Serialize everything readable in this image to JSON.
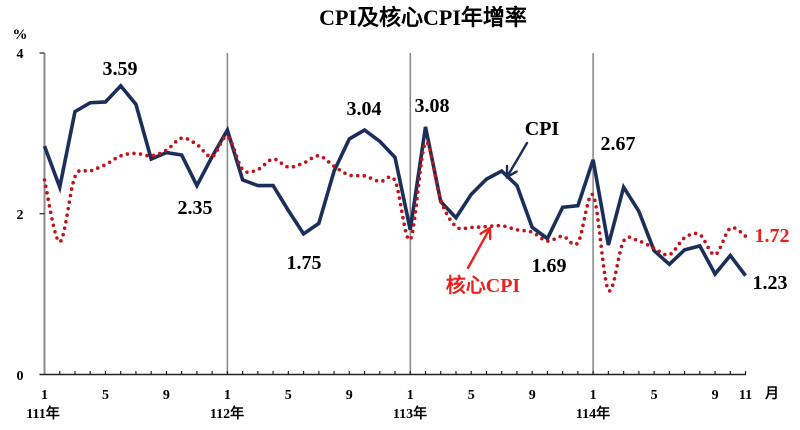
{
  "title": "CPI及核心CPI年增率",
  "chart_data": {
    "type": "line",
    "title": "CPI及核心CPI年增率",
    "ylabel": "%",
    "xlabel": "月",
    "ylim": [
      0,
      4
    ],
    "yticks": [
      "0",
      "2",
      "4"
    ],
    "grid": false,
    "legend": "inline annotations with arrows",
    "x": [
      "111/1",
      "111/2",
      "111/3",
      "111/4",
      "111/5",
      "111/6",
      "111/7",
      "111/8",
      "111/9",
      "111/10",
      "111/11",
      "111/12",
      "112/1",
      "112/2",
      "112/3",
      "112/4",
      "112/5",
      "112/6",
      "112/7",
      "112/8",
      "112/9",
      "112/10",
      "112/11",
      "112/12",
      "113/1",
      "113/2",
      "113/3",
      "113/4",
      "113/5",
      "113/6",
      "113/7",
      "113/8",
      "113/9",
      "113/10",
      "113/11",
      "113/12",
      "114/1",
      "114/2",
      "114/3",
      "114/4",
      "114/5",
      "114/6",
      "114/7",
      "114/8",
      "114/9",
      "114/10",
      "114/11"
    ],
    "month_tick_labels": [
      "1",
      "5",
      "9",
      "1",
      "5",
      "9",
      "1",
      "5",
      "9",
      "1",
      "5",
      "9",
      "11"
    ],
    "year_labels": [
      "111年",
      "112年",
      "113年",
      "114年"
    ],
    "series": [
      {
        "name": "CPI",
        "color": "#1b2f5a",
        "style": "solid",
        "smooth": false,
        "values": [
          2.84,
          2.33,
          3.27,
          3.38,
          3.39,
          3.59,
          3.36,
          2.68,
          2.76,
          2.73,
          2.35,
          2.71,
          3.04,
          2.42,
          2.35,
          2.35,
          2.04,
          1.75,
          1.88,
          2.53,
          2.93,
          3.04,
          2.9,
          2.7,
          1.8,
          3.08,
          2.15,
          1.95,
          2.24,
          2.43,
          2.53,
          2.35,
          1.83,
          1.69,
          2.08,
          2.1,
          2.67,
          1.61,
          2.33,
          2.03,
          1.54,
          1.37,
          1.55,
          1.6,
          1.25,
          1.48,
          1.23
        ]
      },
      {
        "name": "核心CPI",
        "color": "#c0131a",
        "style": "dotted",
        "smooth": true,
        "values": [
          2.42,
          1.65,
          2.46,
          2.53,
          2.61,
          2.72,
          2.75,
          2.72,
          2.79,
          2.94,
          2.86,
          2.71,
          2.96,
          2.55,
          2.55,
          2.68,
          2.58,
          2.63,
          2.72,
          2.59,
          2.48,
          2.47,
          2.4,
          2.41,
          1.68,
          2.88,
          2.17,
          1.84,
          1.83,
          1.84,
          1.85,
          1.8,
          1.77,
          1.66,
          1.72,
          1.64,
          2.23,
          1.05,
          1.66,
          1.66,
          1.57,
          1.49,
          1.7,
          1.74,
          1.49,
          1.82,
          1.72
        ]
      }
    ],
    "annotations": [
      {
        "text": "3.59",
        "x": "111/6",
        "series": "CPI"
      },
      {
        "text": "2.35",
        "x": "111/11",
        "series": "CPI"
      },
      {
        "text": "3.04",
        "x": "112/10",
        "series": "CPI"
      },
      {
        "text": "1.75",
        "x": "112/6",
        "series": "CPI"
      },
      {
        "text": "3.08",
        "x": "113/2",
        "series": "CPI"
      },
      {
        "text": "1.69",
        "x": "113/10",
        "series": "CPI"
      },
      {
        "text": "2.67",
        "x": "114/1",
        "series": "CPI"
      },
      {
        "text": "1.72",
        "x": "114/11",
        "series": "核心CPI",
        "color": "#e8231e"
      },
      {
        "text": "1.23",
        "x": "114/11",
        "series": "CPI"
      }
    ],
    "series_labels": {
      "cpi": "CPI",
      "core": "核心CPI"
    }
  }
}
